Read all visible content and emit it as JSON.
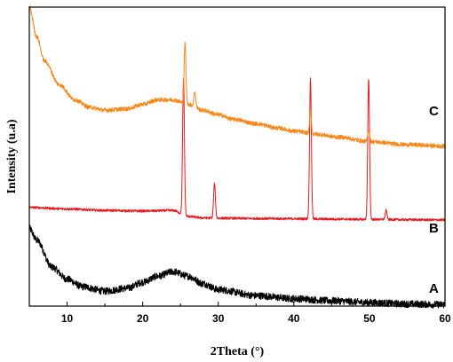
{
  "chart_data": {
    "type": "line",
    "title": "",
    "xlabel": "2Theta (°)",
    "ylabel": "Intensity (u.a)",
    "xlim": [
      5,
      60
    ],
    "xticks": [
      10,
      20,
      30,
      40,
      50,
      60
    ],
    "xtick_labels": [
      "10",
      "20",
      "30",
      "40",
      "50",
      "60"
    ],
    "y_ticks_shown": false,
    "grid": false,
    "legend": "none",
    "series": [
      {
        "name": "A",
        "color": "#000000",
        "points": [
          [
            5,
            0.26
          ],
          [
            6,
            0.22
          ],
          [
            8,
            0.13
          ],
          [
            10,
            0.09
          ],
          [
            12,
            0.065
          ],
          [
            15,
            0.05
          ],
          [
            18,
            0.06
          ],
          [
            20,
            0.08
          ],
          [
            22,
            0.1
          ],
          [
            24,
            0.115
          ],
          [
            26,
            0.1
          ],
          [
            28,
            0.075
          ],
          [
            30,
            0.055
          ],
          [
            35,
            0.035
          ],
          [
            40,
            0.025
          ],
          [
            45,
            0.018
          ],
          [
            50,
            0.012
          ],
          [
            55,
            0.007
          ],
          [
            60,
            0.005
          ]
        ],
        "peaks": []
      },
      {
        "name": "B",
        "color": "#e8191e",
        "points": [
          [
            5,
            0.33
          ],
          [
            10,
            0.325
          ],
          [
            15,
            0.32
          ],
          [
            20,
            0.318
          ],
          [
            24,
            0.32
          ],
          [
            26,
            0.3
          ],
          [
            28,
            0.295
          ],
          [
            30,
            0.294
          ],
          [
            35,
            0.293
          ],
          [
            40,
            0.292
          ],
          [
            45,
            0.291
          ],
          [
            50,
            0.29
          ],
          [
            55,
            0.289
          ],
          [
            60,
            0.288
          ]
        ],
        "peaks": [
          [
            25.4,
            0.76
          ],
          [
            29.5,
            0.41
          ],
          [
            42.2,
            0.76
          ],
          [
            49.9,
            0.76
          ],
          [
            52.2,
            0.32
          ]
        ]
      },
      {
        "name": "C",
        "color": "#f7891c",
        "points": [
          [
            5,
            1.0
          ],
          [
            6,
            0.9
          ],
          [
            7,
            0.82
          ],
          [
            9,
            0.74
          ],
          [
            11,
            0.69
          ],
          [
            13,
            0.665
          ],
          [
            15,
            0.655
          ],
          [
            18,
            0.66
          ],
          [
            20,
            0.675
          ],
          [
            22,
            0.69
          ],
          [
            24,
            0.69
          ],
          [
            26,
            0.675
          ],
          [
            28,
            0.655
          ],
          [
            30,
            0.64
          ],
          [
            32,
            0.625
          ],
          [
            35,
            0.61
          ],
          [
            38,
            0.595
          ],
          [
            40,
            0.585
          ],
          [
            43,
            0.575
          ],
          [
            46,
            0.565
          ],
          [
            50,
            0.55
          ],
          [
            55,
            0.54
          ],
          [
            60,
            0.535
          ]
        ],
        "peaks": [
          [
            25.6,
            0.88
          ],
          [
            26.9,
            0.72
          ],
          [
            42.2,
            0.65
          ],
          [
            49.9,
            0.59
          ]
        ]
      }
    ]
  }
}
